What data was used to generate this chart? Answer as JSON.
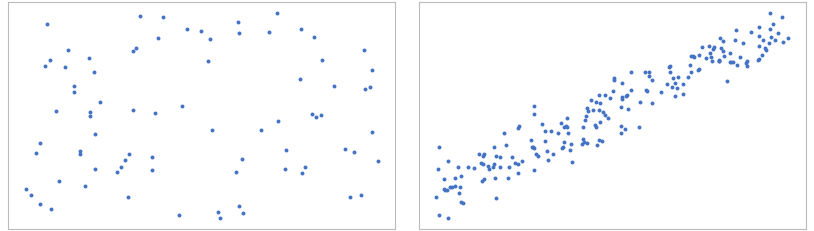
{
  "random_seed_1": 42,
  "random_seed_2": 7,
  "n_points_1": 80,
  "n_points_2": 200,
  "marker_color": "#4472C4",
  "marker_size": 8,
  "marker_alpha": 1.0,
  "bg_color": "#ffffff",
  "fig_width": 8.14,
  "fig_height": 2.31,
  "dpi": 100,
  "spine_color": "#bbbbbb",
  "noise_std": 0.9
}
